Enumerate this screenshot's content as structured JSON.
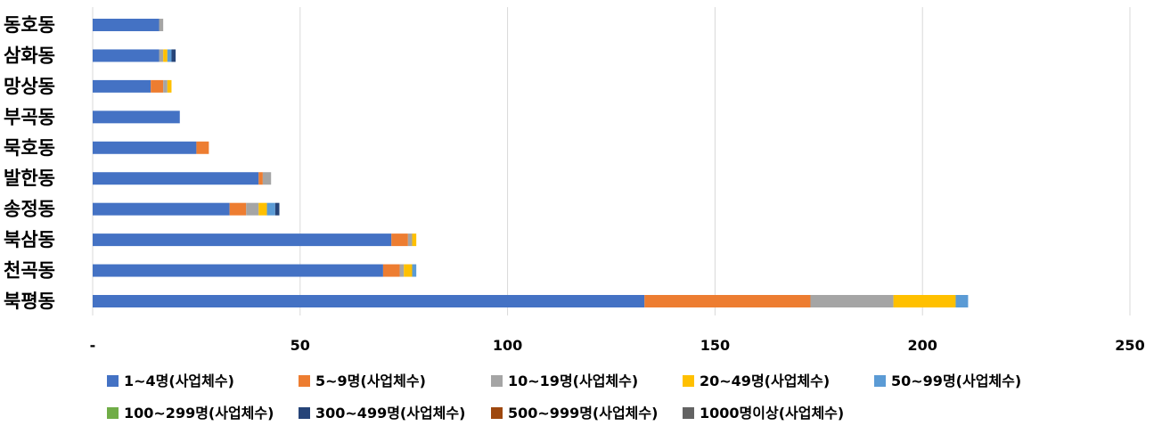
{
  "chart_data": {
    "type": "bar",
    "orientation": "horizontal",
    "stacked": true,
    "categories": [
      "동호동",
      "삼화동",
      "망상동",
      "부곡동",
      "묵호동",
      "발한동",
      "송정동",
      "북삼동",
      "천곡동",
      "북평동"
    ],
    "x_ticks": [
      "-",
      "50",
      "100",
      "150",
      "200",
      "250"
    ],
    "xlim": [
      0,
      250
    ],
    "grid": "vertical",
    "legend_position": "bottom",
    "series": [
      {
        "name": "1~4명(사업체수)",
        "color": "#4472C4",
        "values": [
          16,
          16,
          14,
          21,
          25,
          40,
          33,
          72,
          70,
          133
        ]
      },
      {
        "name": "5~9명(사업체수)",
        "color": "#ED7D31",
        "values": [
          0,
          0,
          3,
          0,
          3,
          1,
          4,
          4,
          4,
          40
        ]
      },
      {
        "name": "10~19명(사업체수)",
        "color": "#A5A5A5",
        "values": [
          1,
          1,
          1,
          0,
          0,
          2,
          3,
          1,
          1,
          20
        ]
      },
      {
        "name": "20~49명(사업체수)",
        "color": "#FFC000",
        "values": [
          0,
          1,
          1,
          0,
          0,
          0,
          2,
          1,
          2,
          15
        ]
      },
      {
        "name": "50~99명(사업체수)",
        "color": "#5B9BD5",
        "values": [
          0,
          1,
          0,
          0,
          0,
          0,
          2,
          0,
          1,
          3
        ]
      },
      {
        "name": "100~299명(사업체수)",
        "color": "#70AD47",
        "values": [
          0,
          0,
          0,
          0,
          0,
          0,
          0,
          0,
          0,
          0
        ]
      },
      {
        "name": "300~499명(사업체수)",
        "color": "#264478",
        "values": [
          0,
          1,
          0,
          0,
          0,
          0,
          1,
          0,
          0,
          0
        ]
      },
      {
        "name": "500~999명(사업체수)",
        "color": "#9E480E",
        "values": [
          0,
          0,
          0,
          0,
          0,
          0,
          0,
          0,
          0,
          0
        ]
      },
      {
        "name": "1000명이상(사업체수)",
        "color": "#636363",
        "values": [
          0,
          0,
          0,
          0,
          0,
          0,
          0,
          0,
          0,
          0
        ]
      }
    ]
  }
}
